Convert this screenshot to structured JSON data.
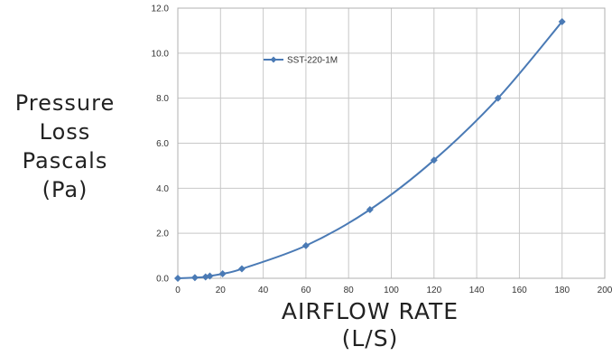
{
  "chart_data": {
    "type": "line",
    "ylabel_lines": [
      "Pressure",
      "Loss",
      "Pascals",
      "(Pa)"
    ],
    "xlabel_lines": [
      "AIRFLOW RATE",
      "(L/S)"
    ],
    "xlim": [
      0,
      200
    ],
    "ylim": [
      0,
      12
    ],
    "x_ticks": [
      "0",
      "20",
      "40",
      "60",
      "80",
      "100",
      "120",
      "140",
      "160",
      "180",
      "200"
    ],
    "y_ticks": [
      "0.0",
      "2.0",
      "4.0",
      "6.0",
      "8.0",
      "10.0",
      "12.0"
    ],
    "grid": true,
    "legend_position": "top-left",
    "series": [
      {
        "name": "SST-220-1M",
        "color": "#4a7ab5",
        "marker": "diamond",
        "x": [
          0,
          8,
          13,
          15,
          21,
          30,
          60,
          90,
          120,
          150,
          180
        ],
        "y": [
          0.0,
          0.03,
          0.06,
          0.1,
          0.2,
          0.42,
          1.45,
          3.05,
          5.25,
          8.0,
          11.4
        ]
      }
    ]
  }
}
